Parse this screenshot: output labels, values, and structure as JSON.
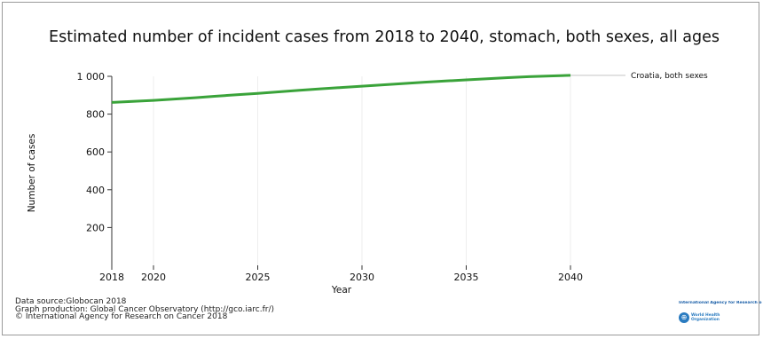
{
  "chart_data": {
    "type": "line",
    "title": "Estimated number of incident cases from 2018 to 2040, stomach, both sexes, all ages",
    "xlabel": "Year",
    "ylabel": "Number of cases",
    "xlim": [
      2018,
      2040
    ],
    "ylim": [
      0,
      1000
    ],
    "x_ticks": [
      "2018",
      "2020",
      "2025",
      "2030",
      "2035",
      "2040"
    ],
    "y_ticks": [
      "200",
      "400",
      "600",
      "800",
      "1 000"
    ],
    "x": [
      2018,
      2019,
      2020,
      2021,
      2022,
      2023,
      2024,
      2025,
      2026,
      2027,
      2028,
      2029,
      2030,
      2031,
      2032,
      2033,
      2034,
      2035,
      2036,
      2037,
      2038,
      2039,
      2040
    ],
    "series": [
      {
        "name": "Croatia, both sexes",
        "color": "#3aa33a",
        "values": [
          862,
          867,
          873,
          880,
          887,
          895,
          903,
          910,
          918,
          926,
          934,
          941,
          948,
          955,
          962,
          969,
          975,
          981,
          987,
          993,
          998,
          1002,
          1005
        ]
      }
    ],
    "grid": false,
    "legend_position": "right, at line end"
  },
  "footer": {
    "line1": "Data source:Globocan 2018",
    "line2": "Graph production: Global Cancer Observatory (http://gco.iarc.fr/)",
    "line3": "© International Agency for Research on Cancer 2018"
  },
  "logos": {
    "iarc": "International Agency for Research on C",
    "who_line1": "World Health",
    "who_line2": "Organization"
  }
}
